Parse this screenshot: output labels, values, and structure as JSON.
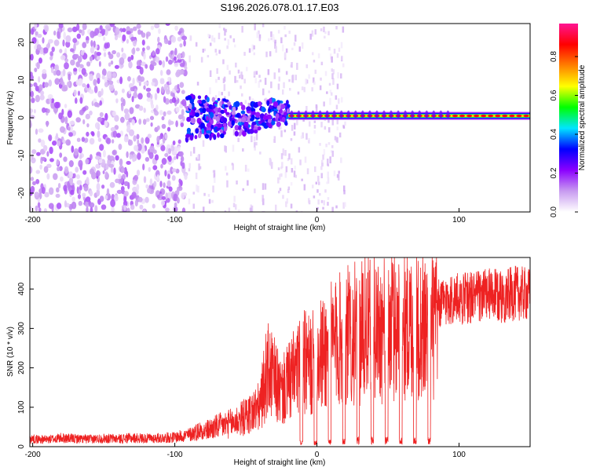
{
  "page_title": "S196.2026.078.01.17.E03",
  "chart_data": [
    {
      "type": "heatmap",
      "title": "S196.2026.078.01.17.E03",
      "xlabel": "Height of straight line (km)",
      "ylabel": "Frequency (Hz)",
      "xlim": [
        -202,
        150
      ],
      "ylim": [
        -25,
        25
      ],
      "x_ticks": [
        -200,
        -100,
        0,
        100
      ],
      "y_ticks": [
        -20,
        -10,
        0,
        10,
        20
      ],
      "colorbar": {
        "label": "Normalized spectral amplitude",
        "range": [
          0,
          0.97
        ],
        "ticks": [
          0.0,
          0.2,
          0.4,
          0.6,
          0.8
        ],
        "colors": [
          "#ffffff",
          "#c89bf0",
          "#8b00ff",
          "#0000ff",
          "#00e5ff",
          "#00ff00",
          "#ffff00",
          "#ff7f00",
          "#ff0000",
          "#ff1493"
        ]
      },
      "regions": [
        {
          "x_range": [
            -202,
            -92
          ],
          "description": "Broadband noise",
          "amplitude": 0.1
        },
        {
          "x_range": [
            -92,
            -20
          ],
          "description": "Emerging signal near 0 Hz",
          "amplitude": 0.3,
          "freq_center": 0
        },
        {
          "x_range": [
            -20,
            150
          ],
          "description": "Narrow line at 0-1 Hz",
          "amplitude": 0.9,
          "freq_center": 0.5
        }
      ]
    },
    {
      "type": "line",
      "xlabel": "Height of straight line (km)",
      "ylabel": "SNR (10 * v/v)",
      "xlim": [
        -202,
        150
      ],
      "ylim": [
        0,
        480
      ],
      "x_ticks": [
        -200,
        -100,
        0,
        100
      ],
      "y_ticks": [
        0,
        100,
        200,
        300,
        400
      ],
      "series": [
        {
          "name": "SNR",
          "color": "#ee2222",
          "x": [
            -202,
            -190,
            -180,
            -170,
            -160,
            -150,
            -140,
            -130,
            -120,
            -110,
            -100,
            -90,
            -80,
            -70,
            -60,
            -50,
            -40,
            -35,
            -30,
            -25,
            -20,
            -15,
            -10,
            -5,
            0,
            5,
            10,
            20,
            30,
            40,
            50,
            60,
            70,
            80,
            90,
            100,
            110,
            120,
            130,
            140,
            150
          ],
          "values": [
            20,
            18,
            22,
            20,
            19,
            21,
            20,
            22,
            21,
            22,
            24,
            30,
            45,
            60,
            70,
            90,
            120,
            230,
            200,
            160,
            190,
            220,
            250,
            240,
            260,
            280,
            300,
            330,
            340,
            350,
            355,
            360,
            360,
            355,
            380,
            385,
            390,
            395,
            390,
            400,
            395
          ]
        }
      ]
    }
  ]
}
